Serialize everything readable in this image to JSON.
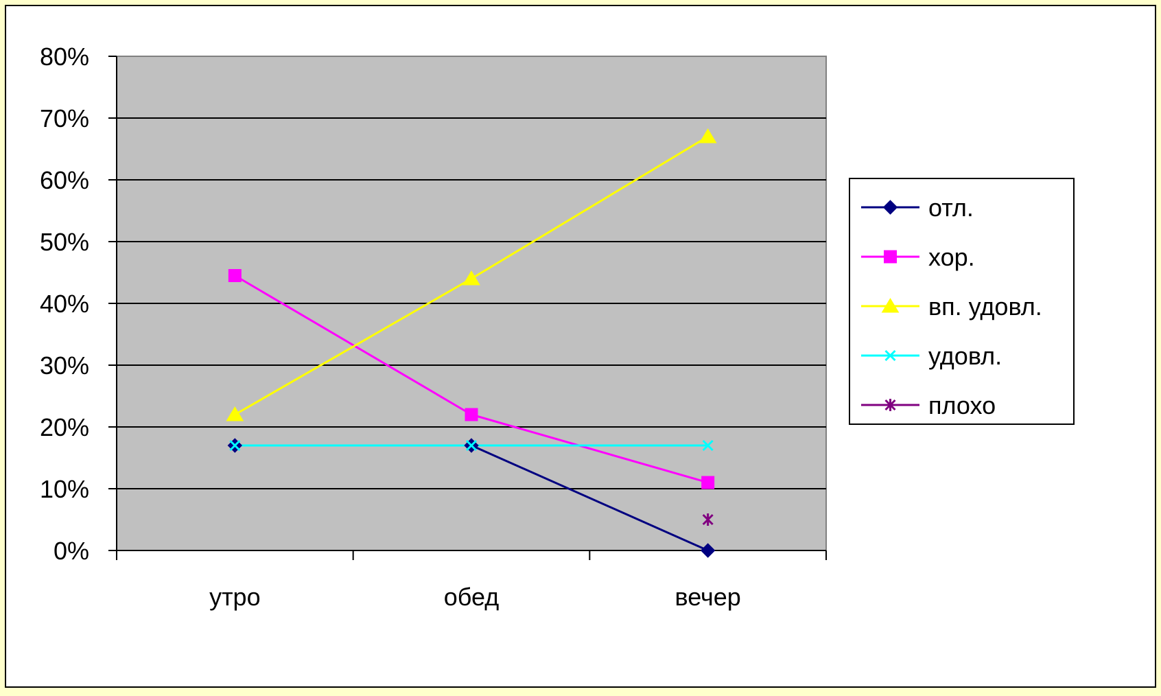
{
  "chart_data": {
    "type": "line",
    "title": "",
    "xlabel": "",
    "ylabel": "",
    "categories": [
      "утро",
      "обед",
      "вечер"
    ],
    "y_ticks": [
      "0%",
      "10%",
      "20%",
      "30%",
      "40%",
      "50%",
      "60%",
      "70%",
      "80%"
    ],
    "ylim": [
      0,
      80
    ],
    "y_unit": "%",
    "grid": true,
    "legend_position": "right",
    "plot_background": "#c0c0c0",
    "series": [
      {
        "name": "отл.",
        "values": [
          17,
          17,
          0
        ],
        "color": "#000080",
        "marker": "diamond"
      },
      {
        "name": "хор.",
        "values": [
          44.5,
          22,
          11
        ],
        "color": "#ff00ff",
        "marker": "square"
      },
      {
        "name": "вп. удовл.",
        "values": [
          22,
          44,
          67
        ],
        "color": "#ffff00",
        "marker": "triangle"
      },
      {
        "name": "удовл.",
        "values": [
          17,
          17,
          17
        ],
        "color": "#00ffff",
        "marker": "x"
      },
      {
        "name": "плохо",
        "values": [
          null,
          null,
          5
        ],
        "color": "#800080",
        "marker": "star"
      }
    ]
  }
}
